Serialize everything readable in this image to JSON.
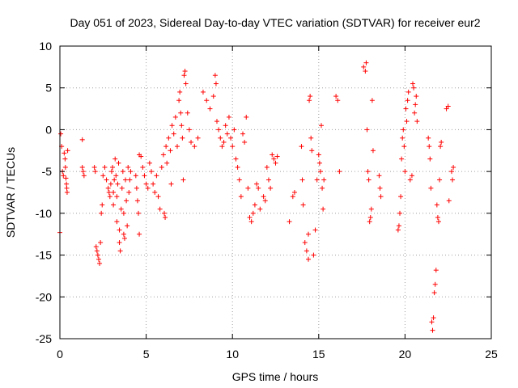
{
  "chart_data": {
    "type": "scatter",
    "title": "Day 051 of 2023, Sidereal Day-to-day VTEC variation (SDTVAR) for receiver eur2",
    "xlabel": "GPS time / hours",
    "ylabel": "SDTVAR / TECUs",
    "xlim": [
      0,
      25
    ],
    "ylim": [
      -25,
      10
    ],
    "xticks": [
      "0",
      "5",
      "10",
      "15",
      "20",
      "25"
    ],
    "yticks": [
      "-25",
      "-20",
      "-15",
      "-10",
      "-5",
      "0",
      "5",
      "10"
    ],
    "grid": true,
    "marker": "plus",
    "series_color": "#ff0000",
    "series": [
      {
        "name": "SDTVAR",
        "points": [
          [
            0.0,
            -12.3
          ],
          [
            0.05,
            -0.5
          ],
          [
            0.1,
            -2.0
          ],
          [
            0.15,
            -5.0
          ],
          [
            0.2,
            -5.5
          ],
          [
            0.25,
            -2.8
          ],
          [
            0.3,
            -3.5
          ],
          [
            0.32,
            -4.5
          ],
          [
            0.35,
            -5.8
          ],
          [
            0.38,
            -6.5
          ],
          [
            0.4,
            -7.0
          ],
          [
            0.42,
            -7.5
          ],
          [
            0.45,
            -2.5
          ],
          [
            1.3,
            -1.2
          ],
          [
            1.3,
            -4.5
          ],
          [
            1.35,
            -5.0
          ],
          [
            1.4,
            -5.5
          ],
          [
            2.0,
            -4.5
          ],
          [
            2.05,
            -5.0
          ],
          [
            2.1,
            -14.0
          ],
          [
            2.15,
            -14.5
          ],
          [
            2.2,
            -15.0
          ],
          [
            2.25,
            -15.5
          ],
          [
            2.3,
            -16.0
          ],
          [
            2.35,
            -13.5
          ],
          [
            2.4,
            -10.0
          ],
          [
            2.45,
            -9.0
          ],
          [
            2.5,
            -5.5
          ],
          [
            2.6,
            -4.5
          ],
          [
            2.7,
            -6.0
          ],
          [
            2.8,
            -7.0
          ],
          [
            2.85,
            -7.5
          ],
          [
            2.9,
            -8.0
          ],
          [
            2.95,
            -6.5
          ],
          [
            3.0,
            -5.0
          ],
          [
            3.05,
            -4.5
          ],
          [
            3.1,
            -9.0
          ],
          [
            3.1,
            -7.5
          ],
          [
            3.15,
            -6.0
          ],
          [
            3.2,
            -3.5
          ],
          [
            3.25,
            -5.5
          ],
          [
            3.3,
            -11.0
          ],
          [
            3.3,
            -8.0
          ],
          [
            3.35,
            -6.5
          ],
          [
            3.4,
            -4.0
          ],
          [
            3.45,
            -12.0
          ],
          [
            3.45,
            -13.5
          ],
          [
            3.5,
            -14.5
          ],
          [
            3.55,
            -9.5
          ],
          [
            3.6,
            -7.0
          ],
          [
            3.65,
            -5.0
          ],
          [
            3.7,
            -10.0
          ],
          [
            3.7,
            -12.5
          ],
          [
            3.75,
            -13.0
          ],
          [
            3.8,
            -6.0
          ],
          [
            3.85,
            -8.5
          ],
          [
            3.9,
            -11.5
          ],
          [
            3.95,
            -4.5
          ],
          [
            4.0,
            -7.5
          ],
          [
            4.05,
            -6.0
          ],
          [
            4.1,
            -5.0
          ],
          [
            4.4,
            -5.5
          ],
          [
            4.45,
            -7.0
          ],
          [
            4.5,
            -8.5
          ],
          [
            4.55,
            -10.0
          ],
          [
            4.6,
            -12.5
          ],
          [
            4.6,
            -3.0
          ],
          [
            4.7,
            -3.2
          ],
          [
            4.8,
            -4.5
          ],
          [
            4.9,
            -5.5
          ],
          [
            5.0,
            -6.5
          ],
          [
            5.1,
            -7.0
          ],
          [
            5.2,
            -4.0
          ],
          [
            5.3,
            -5.0
          ],
          [
            5.4,
            -6.5
          ],
          [
            5.5,
            -7.5
          ],
          [
            5.6,
            -5.5
          ],
          [
            5.7,
            -8.0
          ],
          [
            5.8,
            -9.5
          ],
          [
            5.9,
            -4.5
          ],
          [
            6.0,
            -3.0
          ],
          [
            6.05,
            -10.0
          ],
          [
            6.1,
            -10.5
          ],
          [
            6.15,
            -2.0
          ],
          [
            6.2,
            -4.0
          ],
          [
            6.3,
            -1.0
          ],
          [
            6.4,
            -2.5
          ],
          [
            6.45,
            -6.5
          ],
          [
            6.5,
            0.5
          ],
          [
            6.6,
            -0.5
          ],
          [
            6.7,
            1.5
          ],
          [
            6.8,
            -2.0
          ],
          [
            6.9,
            3.5
          ],
          [
            6.95,
            4.5
          ],
          [
            7.0,
            2.0
          ],
          [
            7.05,
            0.5
          ],
          [
            7.1,
            -1.0
          ],
          [
            7.15,
            -6.0
          ],
          [
            7.2,
            6.5
          ],
          [
            7.25,
            7.0
          ],
          [
            7.3,
            5.5
          ],
          [
            7.4,
            2.0
          ],
          [
            7.5,
            0.0
          ],
          [
            7.6,
            -1.5
          ],
          [
            7.8,
            -2.0
          ],
          [
            8.0,
            -1.0
          ],
          [
            8.3,
            4.5
          ],
          [
            8.5,
            3.5
          ],
          [
            8.7,
            2.5
          ],
          [
            8.9,
            4.0
          ],
          [
            9.0,
            6.5
          ],
          [
            9.05,
            5.5
          ],
          [
            9.1,
            1.0
          ],
          [
            9.2,
            0.0
          ],
          [
            9.3,
            -1.0
          ],
          [
            9.4,
            -2.0
          ],
          [
            9.5,
            -1.5
          ],
          [
            9.6,
            0.5
          ],
          [
            9.7,
            -0.5
          ],
          [
            9.8,
            1.5
          ],
          [
            9.9,
            -1.0
          ],
          [
            10.0,
            -2.0
          ],
          [
            10.1,
            0.0
          ],
          [
            10.2,
            -3.5
          ],
          [
            10.3,
            -4.5
          ],
          [
            10.4,
            -6.0
          ],
          [
            10.5,
            -8.0
          ],
          [
            10.6,
            -0.5
          ],
          [
            10.7,
            -1.5
          ],
          [
            10.8,
            1.5
          ],
          [
            10.9,
            -7.0
          ],
          [
            11.0,
            -10.5
          ],
          [
            11.1,
            -11.0
          ],
          [
            11.2,
            -10.0
          ],
          [
            11.3,
            -9.0
          ],
          [
            11.4,
            -6.5
          ],
          [
            11.5,
            -7.0
          ],
          [
            11.6,
            -9.5
          ],
          [
            11.8,
            -8.0
          ],
          [
            11.9,
            -8.5
          ],
          [
            12.0,
            -4.5
          ],
          [
            12.1,
            -6.0
          ],
          [
            12.2,
            -7.0
          ],
          [
            12.3,
            -3.0
          ],
          [
            12.4,
            -3.5
          ],
          [
            12.5,
            -4.0
          ],
          [
            12.6,
            -3.2
          ],
          [
            13.3,
            -11.0
          ],
          [
            13.5,
            -8.0
          ],
          [
            13.6,
            -7.5
          ],
          [
            14.0,
            -2.0
          ],
          [
            14.05,
            -6.0
          ],
          [
            14.1,
            -9.0
          ],
          [
            14.2,
            -13.5
          ],
          [
            14.3,
            -14.5
          ],
          [
            14.4,
            -15.5
          ],
          [
            14.4,
            -12.5
          ],
          [
            14.5,
            4.0
          ],
          [
            14.45,
            3.5
          ],
          [
            14.55,
            -1.0
          ],
          [
            14.6,
            -2.5
          ],
          [
            14.7,
            -15.0
          ],
          [
            14.8,
            -12.0
          ],
          [
            14.9,
            -6.0
          ],
          [
            15.0,
            -3.0
          ],
          [
            15.05,
            -4.0
          ],
          [
            15.1,
            -5.0
          ],
          [
            15.15,
            0.5
          ],
          [
            15.2,
            -7.0
          ],
          [
            15.25,
            -9.5
          ],
          [
            15.3,
            -6.0
          ],
          [
            16.0,
            4.0
          ],
          [
            16.1,
            3.5
          ],
          [
            16.2,
            -5.0
          ],
          [
            17.6,
            7.5
          ],
          [
            17.7,
            7.0
          ],
          [
            17.75,
            8.0
          ],
          [
            17.8,
            0.0
          ],
          [
            17.85,
            -5.0
          ],
          [
            17.9,
            -6.0
          ],
          [
            17.95,
            -11.0
          ],
          [
            18.0,
            -10.5
          ],
          [
            18.05,
            -9.5
          ],
          [
            18.1,
            3.5
          ],
          [
            18.15,
            -2.5
          ],
          [
            18.5,
            -5.5
          ],
          [
            18.55,
            -7.0
          ],
          [
            18.6,
            -8.0
          ],
          [
            19.6,
            -12.0
          ],
          [
            19.65,
            -11.5
          ],
          [
            19.7,
            -10.0
          ],
          [
            19.75,
            -8.0
          ],
          [
            19.8,
            -3.5
          ],
          [
            19.85,
            -1.0
          ],
          [
            19.9,
            0.0
          ],
          [
            19.95,
            -2.0
          ],
          [
            20.0,
            -5.0
          ],
          [
            20.05,
            2.5
          ],
          [
            20.1,
            1.0
          ],
          [
            20.15,
            3.5
          ],
          [
            20.2,
            4.5
          ],
          [
            20.3,
            -6.0
          ],
          [
            20.4,
            -5.5
          ],
          [
            20.45,
            5.5
          ],
          [
            20.5,
            5.0
          ],
          [
            20.55,
            2.0
          ],
          [
            20.6,
            3.0
          ],
          [
            20.65,
            4.0
          ],
          [
            20.7,
            1.0
          ],
          [
            21.35,
            -1.0
          ],
          [
            21.4,
            -2.0
          ],
          [
            21.45,
            -3.5
          ],
          [
            21.5,
            -7.0
          ],
          [
            21.55,
            -23.0
          ],
          [
            21.6,
            -24.0
          ],
          [
            21.65,
            -22.5
          ],
          [
            21.7,
            -19.5
          ],
          [
            21.75,
            -18.5
          ],
          [
            21.8,
            -16.8
          ],
          [
            21.85,
            -9.0
          ],
          [
            21.9,
            -10.5
          ],
          [
            21.95,
            -11.0
          ],
          [
            22.0,
            -6.0
          ],
          [
            22.05,
            -2.0
          ],
          [
            22.1,
            -1.5
          ],
          [
            22.4,
            2.5
          ],
          [
            22.5,
            2.8
          ],
          [
            22.55,
            -8.5
          ],
          [
            22.7,
            -5.0
          ],
          [
            22.75,
            -6.0
          ],
          [
            22.8,
            -4.5
          ]
        ]
      }
    ]
  }
}
